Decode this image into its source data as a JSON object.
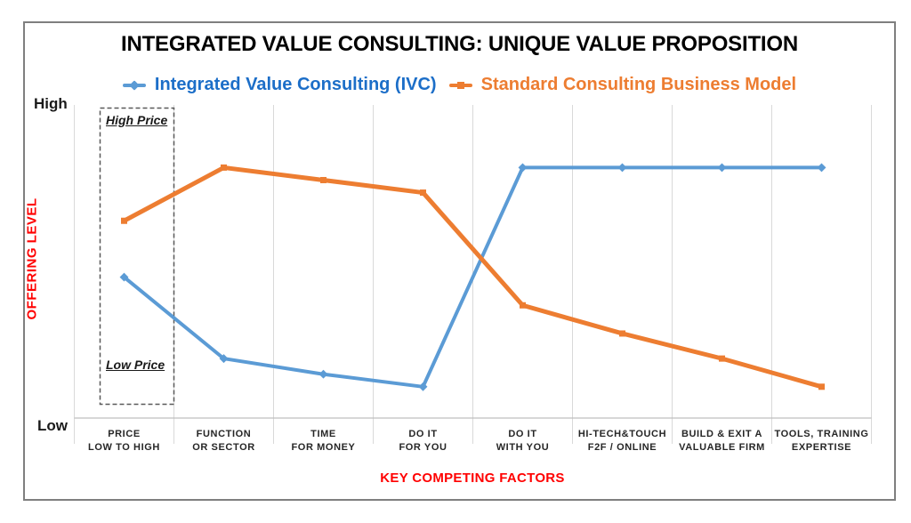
{
  "title": "INTEGRATED VALUE CONSULTING: UNIQUE VALUE PROPOSITION",
  "legend": {
    "items": [
      {
        "label": "Integrated Value Consulting (IVC)",
        "text_color": "#1C6EC8",
        "marker_color": "#5B9BD5",
        "marker_shape": "diamond"
      },
      {
        "label": "Standard Consulting Business Model",
        "text_color": "#ED7D31",
        "marker_color": "#ED7D31",
        "marker_shape": "square"
      }
    ]
  },
  "y_axis": {
    "high_label": "High",
    "low_label": "Low",
    "title": "OFFERING LEVEL",
    "title_color": "#FF0000"
  },
  "x_axis": {
    "title": "KEY COMPETING FACTORS",
    "title_color": "#FF0000"
  },
  "annotations": {
    "high_price": "High Price",
    "low_price": "Low Price"
  },
  "chart_data": {
    "type": "line",
    "categories": [
      [
        "PRICE",
        "LOW TO HIGH"
      ],
      [
        "FUNCTION",
        "OR SECTOR"
      ],
      [
        "TIME",
        "FOR MONEY"
      ],
      [
        "DO IT",
        "FOR YOU"
      ],
      [
        "DO IT",
        "WITH YOU"
      ],
      [
        "HI-TECH&TOUCH",
        "F2F / ONLINE"
      ],
      [
        "BUILD & EXIT A",
        "VALUABLE FIRM"
      ],
      [
        "TOOLS, TRAINING",
        "EXPERTISE"
      ]
    ],
    "series": [
      {
        "name": "Integrated Value Consulting (IVC)",
        "color": "#5B9BD5",
        "line_width": 4,
        "marker": "diamond",
        "values": [
          4.5,
          1.9,
          1.4,
          1.0,
          8.0,
          8.0,
          8.0,
          8.0
        ]
      },
      {
        "name": "Standard Consulting Business Model",
        "color": "#ED7D31",
        "line_width": 5,
        "marker": "square",
        "values": [
          6.3,
          8.0,
          7.6,
          7.2,
          3.6,
          2.7,
          1.9,
          1.0
        ]
      }
    ],
    "title": "INTEGRATED VALUE CONSULTING: UNIQUE VALUE PROPOSITION",
    "xlabel": "KEY COMPETING FACTORS",
    "ylabel": "OFFERING LEVEL",
    "ylim": [
      0,
      10
    ],
    "y_tick_labels": [
      "Low",
      "High"
    ],
    "grid": "vertical-category-boundaries",
    "legend_position": "top",
    "grid_color": "#D9D9D9",
    "axis_color": "#BFBFBF"
  }
}
